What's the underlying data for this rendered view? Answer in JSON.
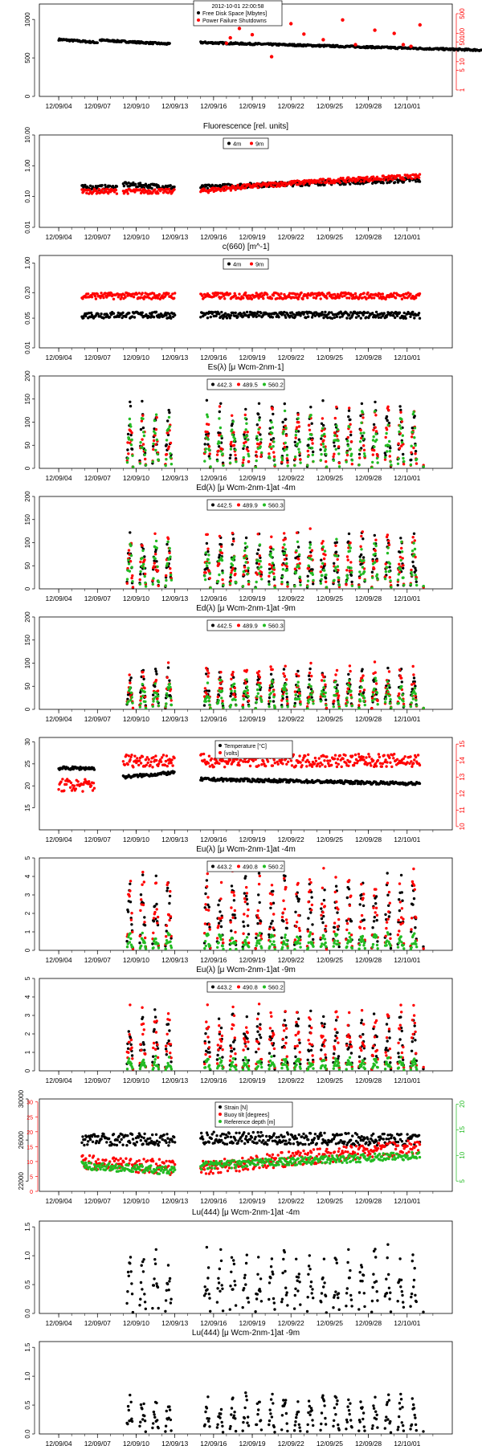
{
  "colors": {
    "black": "#000000",
    "red": "#ff0000",
    "green": "#22bb22",
    "frame": "#000000"
  },
  "x_dates": [
    "12/09/04",
    "12/09/07",
    "12/09/10",
    "12/09/13",
    "12/09/16",
    "12/09/19",
    "12/09/22",
    "12/09/25",
    "12/09/28",
    "12/10/01"
  ],
  "chart_data": [
    {
      "type": "scatter",
      "title": "",
      "legend_header": "2012-10-01 22:00:58",
      "legend": [
        {
          "label": "Free Disk Space [Mbytes]",
          "color": "black"
        },
        {
          "label": "Power Failure Shutdowns",
          "color": "red"
        }
      ],
      "ylim": [
        0,
        1200
      ],
      "yticks": [
        "0",
        "500",
        "1000"
      ],
      "ytick_values": [
        0,
        500,
        1000
      ],
      "right_axis": {
        "color": "red",
        "ticks": [
          "1",
          "5",
          "10",
          "50",
          "100",
          "500"
        ],
        "tick_values": [
          1,
          5,
          10,
          50,
          100,
          500
        ],
        "log": true
      },
      "series": [
        {
          "name": "Free Disk Space [Mbytes]",
          "color": "black",
          "segments": [
            [
              0,
              3,
              740,
              700
            ],
            [
              3.2,
              8.6,
              730,
              680
            ],
            [
              11,
              33,
              700,
              600
            ]
          ]
        },
        {
          "name": "Power Failure Shutdowns",
          "color": "red",
          "points": [
            [
              13,
              45
            ],
            [
              13.3,
              70
            ],
            [
              14,
              150
            ],
            [
              15,
              90
            ],
            [
              16.5,
              15
            ],
            [
              17,
              260
            ],
            [
              18,
              220
            ],
            [
              19,
              95
            ],
            [
              20.5,
              60
            ],
            [
              22,
              300
            ],
            [
              23,
              40
            ],
            [
              24.5,
              130
            ],
            [
              26,
              100
            ],
            [
              26.7,
              40
            ],
            [
              27.3,
              35
            ],
            [
              28,
              200
            ]
          ]
        }
      ]
    },
    {
      "type": "scatter",
      "title": "Fluorescence  [rel. units]",
      "log": true,
      "legend": [
        {
          "label": "4m",
          "color": "black"
        },
        {
          "label": "9m",
          "color": "red"
        }
      ],
      "ylim": [
        0.01,
        10
      ],
      "yticks": [
        "0.01",
        "0.10",
        "1.00",
        "10.00"
      ],
      "ytick_values": [
        0.01,
        0.1,
        1,
        10
      ],
      "series": [
        {
          "name": "4m",
          "color": "black",
          "segments": [
            [
              1.8,
              4.5,
              0.2,
              0.2
            ],
            [
              5,
              9,
              0.25,
              0.2
            ],
            [
              11,
              28,
              0.2,
              0.35
            ]
          ]
        },
        {
          "name": "9m",
          "color": "red",
          "segments": [
            [
              1.8,
              4.5,
              0.15,
              0.15
            ],
            [
              5,
              9,
              0.15,
              0.15
            ],
            [
              11,
              28,
              0.15,
              0.45
            ]
          ]
        }
      ]
    },
    {
      "type": "scatter",
      "title": "c(660)  [m^-1]",
      "log": true,
      "legend": [
        {
          "label": "4m",
          "color": "black"
        },
        {
          "label": "9m",
          "color": "red"
        }
      ],
      "ylim": [
        0.01,
        1.5
      ],
      "yticks": [
        "0.01",
        "0.05",
        "0.20",
        "1.00"
      ],
      "ytick_values": [
        0.01,
        0.05,
        0.2,
        1
      ],
      "series": [
        {
          "name": "4m",
          "color": "black",
          "segments": [
            [
              1.8,
              9,
              0.06,
              0.06
            ],
            [
              11,
              28,
              0.06,
              0.06
            ]
          ]
        },
        {
          "name": "9m",
          "color": "red",
          "segments": [
            [
              1.8,
              9,
              0.17,
              0.17
            ],
            [
              11,
              28,
              0.17,
              0.17
            ]
          ]
        }
      ]
    },
    {
      "type": "scatter",
      "title": "Es(λ)  [μ Wcm-2nm-1]",
      "legend": [
        {
          "label": "442.3",
          "color": "black"
        },
        {
          "label": "489.5",
          "color": "red"
        },
        {
          "label": "560.2",
          "color": "green"
        }
      ],
      "ylim": [
        0,
        200
      ],
      "yticks": [
        "0",
        "50",
        "100",
        "150",
        "200"
      ],
      "ytick_values": [
        0,
        50,
        100,
        150,
        200
      ],
      "daily_peak": [
        130,
        120,
        110
      ],
      "series": [
        {
          "name": "442.3",
          "color": "black"
        },
        {
          "name": "489.5",
          "color": "red"
        },
        {
          "name": "560.2",
          "color": "green"
        }
      ]
    },
    {
      "type": "scatter",
      "title": "Ed(λ)  [μ Wcm-2nm-1]at -4m",
      "legend": [
        {
          "label": "442.5",
          "color": "black"
        },
        {
          "label": "489.9",
          "color": "red"
        },
        {
          "label": "560.3",
          "color": "green"
        }
      ],
      "ylim": [
        0,
        200
      ],
      "yticks": [
        "0",
        "50",
        "100",
        "150",
        "200"
      ],
      "ytick_values": [
        0,
        50,
        100,
        150,
        200
      ],
      "daily_peak": [
        110,
        115,
        95
      ],
      "series": [
        {
          "name": "442.5",
          "color": "black"
        },
        {
          "name": "489.9",
          "color": "red"
        },
        {
          "name": "560.3",
          "color": "green"
        }
      ]
    },
    {
      "type": "scatter",
      "title": "Ed(λ)  [μ Wcm-2nm-1]at -9m",
      "legend": [
        {
          "label": "442.5",
          "color": "black"
        },
        {
          "label": "489.9",
          "color": "red"
        },
        {
          "label": "560.3",
          "color": "green"
        }
      ],
      "ylim": [
        0,
        200
      ],
      "yticks": [
        "0",
        "50",
        "100",
        "150",
        "200"
      ],
      "ytick_values": [
        0,
        50,
        100,
        150,
        200
      ],
      "daily_peak": [
        80,
        90,
        60
      ],
      "series": [
        {
          "name": "442.5",
          "color": "black"
        },
        {
          "name": "489.9",
          "color": "red"
        },
        {
          "name": "560.3",
          "color": "green"
        }
      ]
    },
    {
      "type": "scatter",
      "title": "",
      "legend": [
        {
          "label": "Temperature [°C]",
          "color": "black"
        },
        {
          "label": "[volts]",
          "color": "red"
        }
      ],
      "ylim": [
        10,
        31
      ],
      "yticks": [
        "15",
        "20",
        "25",
        "30"
      ],
      "ytick_values": [
        15,
        20,
        25,
        30
      ],
      "right_axis": {
        "color": "red",
        "ticks": [
          "10",
          "11",
          "12",
          "13",
          "14",
          "15"
        ],
        "tick_values": [
          10,
          11,
          12,
          13,
          14,
          15
        ],
        "lim": [
          9.8,
          15.4
        ]
      },
      "series": [
        {
          "name": "Temperature [°C]",
          "color": "black",
          "segments": [
            [
              0,
              2.8,
              24,
              24
            ],
            [
              5,
              9,
              22,
              23
            ],
            [
              11,
              28,
              21.5,
              20.5
            ]
          ]
        },
        {
          "name": "[volts]",
          "color": "red",
          "right": true,
          "segments": [
            [
              0,
              2.8,
              12.5,
              12.5
            ],
            [
              5,
              9,
              14,
              14
            ],
            [
              11,
              28,
              14,
              14
            ]
          ]
        }
      ]
    },
    {
      "type": "scatter",
      "title": "Eu(λ)  [μ Wcm-2nm-1]at -4m",
      "legend": [
        {
          "label": "443.2",
          "color": "black"
        },
        {
          "label": "490.8",
          "color": "red"
        },
        {
          "label": "560.2",
          "color": "green"
        }
      ],
      "ylim": [
        0,
        5
      ],
      "yticks": [
        "0",
        "1",
        "2",
        "3",
        "4",
        "5"
      ],
      "ytick_values": [
        0,
        1,
        2,
        3,
        4,
        5
      ],
      "daily_peak": [
        3.8,
        4,
        0.9
      ],
      "series": [
        {
          "name": "443.2",
          "color": "black"
        },
        {
          "name": "490.8",
          "color": "red"
        },
        {
          "name": "560.2",
          "color": "green"
        }
      ]
    },
    {
      "type": "scatter",
      "title": "Eu(λ)  [μ Wcm-2nm-1]at -9m",
      "legend": [
        {
          "label": "443.2",
          "color": "black"
        },
        {
          "label": "490.8",
          "color": "red"
        },
        {
          "label": "560.2",
          "color": "green"
        }
      ],
      "ylim": [
        0,
        5
      ],
      "yticks": [
        "0",
        "1",
        "2",
        "3",
        "4",
        "5"
      ],
      "ytick_values": [
        0,
        1,
        2,
        3,
        4,
        5
      ],
      "daily_peak": [
        3.0,
        3.2,
        0.7
      ],
      "series": [
        {
          "name": "443.2",
          "color": "black"
        },
        {
          "name": "490.8",
          "color": "red"
        },
        {
          "name": "560.2",
          "color": "green"
        }
      ]
    },
    {
      "type": "scatter",
      "title": "",
      "legend": [
        {
          "label": "Strain [N]",
          "color": "black"
        },
        {
          "label": "Buoy tilt [degrees]",
          "color": "red"
        },
        {
          "label": "Reference depth [m]",
          "color": "green"
        }
      ],
      "ylim": [
        21000,
        30000
      ],
      "yticks": [
        "22000",
        "26000",
        "30000"
      ],
      "ytick_values": [
        22000,
        26000,
        30000
      ],
      "left2_axis": {
        "color": "red",
        "ticks": [
          "0",
          "5",
          "10",
          "15",
          "20",
          "25",
          "30"
        ],
        "tick_values": [
          0,
          5,
          10,
          15,
          20,
          25,
          30
        ],
        "lim": [
          0,
          31
        ]
      },
      "right_axis": {
        "color": "green",
        "ticks": [
          "5",
          "10",
          "15",
          "20"
        ],
        "tick_values": [
          5,
          10,
          15,
          20
        ],
        "lim": [
          3,
          21
        ]
      },
      "series": [
        {
          "name": "Strain [N]",
          "color": "black",
          "segments": [
            [
              1.8,
              9,
              26100,
              26000
            ],
            [
              11,
              28,
              26200,
              26000
            ]
          ]
        },
        {
          "name": "Buoy tilt [degrees]",
          "color": "red",
          "axis": "left2",
          "segments": [
            [
              1.8,
              9,
              10,
              8
            ],
            [
              11,
              28,
              8,
              15
            ]
          ]
        },
        {
          "name": "Reference depth [m]",
          "color": "green",
          "axis": "right",
          "segments": [
            [
              1.8,
              9,
              8,
              7
            ],
            [
              11,
              28,
              8,
              10
            ]
          ]
        }
      ]
    },
    {
      "type": "scatter",
      "title": "Lu(444)  [μ Wcm-2nm-1]at -4m",
      "ylim": [
        0,
        1.6
      ],
      "yticks": [
        "0.0",
        "0.5",
        "1.0",
        "1.5"
      ],
      "ytick_values": [
        0,
        0.5,
        1,
        1.5
      ],
      "daily_peak": [
        1.05
      ],
      "series": [
        {
          "name": "",
          "color": "black"
        }
      ]
    },
    {
      "type": "scatter",
      "title": "Lu(444)  [μ Wcm-2nm-1]at -9m",
      "ylim": [
        0,
        1.6
      ],
      "yticks": [
        "0.0",
        "0.5",
        "1.0",
        "1.5"
      ],
      "ytick_values": [
        0,
        0.5,
        1,
        1.5
      ],
      "daily_peak": [
        0.65
      ],
      "series": [
        {
          "name": "",
          "color": "black"
        }
      ]
    }
  ]
}
